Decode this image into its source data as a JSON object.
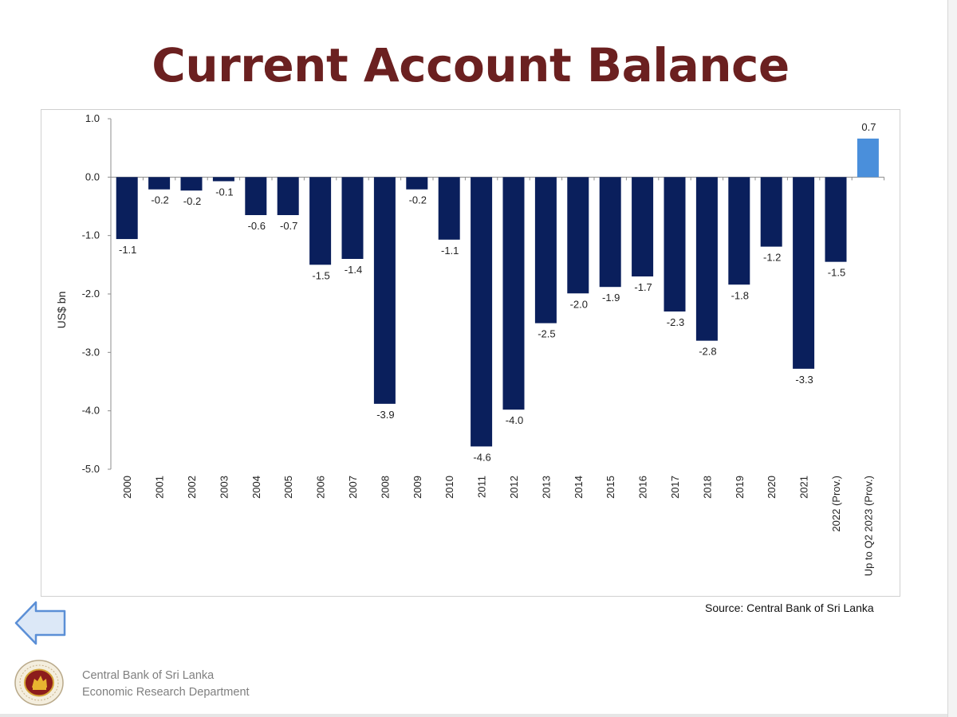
{
  "slide": {
    "title": "Current Account Balance",
    "source": "Source: Central Bank of Sri Lanka",
    "footer": {
      "line1": "Central Bank of Sri Lanka",
      "line2": "Economic Research Department"
    },
    "nav": {
      "back_icon": "arrow-left-icon"
    },
    "logo": {
      "icon": "central-bank-seal-icon"
    }
  },
  "chart_data": {
    "type": "bar",
    "title": "",
    "xlabel": "",
    "ylabel": "US$ bn",
    "ylim": [
      -5.0,
      1.0
    ],
    "yticks": [
      "1.0",
      "0.0",
      "-1.0",
      "-2.0",
      "-3.0",
      "-4.0",
      "-5.0"
    ],
    "ytick_values": [
      1.0,
      0.0,
      -1.0,
      -2.0,
      -3.0,
      -4.0,
      -5.0
    ],
    "grid": false,
    "categories": [
      "2000",
      "2001",
      "2002",
      "2003",
      "2004",
      "2005",
      "2006",
      "2007",
      "2008",
      "2009",
      "2010",
      "2011",
      "2012",
      "2013",
      "2014",
      "2015",
      "2016",
      "2017",
      "2018",
      "2019",
      "2020",
      "2021",
      "2022 (Prov.)",
      "Up to Q2 2023 (Prov.)"
    ],
    "values": [
      -1.06,
      -0.21,
      -0.23,
      -0.07,
      -0.65,
      -0.65,
      -1.5,
      -1.4,
      -3.88,
      -0.21,
      -1.07,
      -4.61,
      -3.98,
      -2.5,
      -1.99,
      -1.88,
      -1.7,
      -2.3,
      -2.8,
      -1.84,
      -1.19,
      -3.28,
      -1.45,
      0.66
    ],
    "labels": [
      "-1.1",
      "-0.2",
      "-0.2",
      "-0.1",
      "-0.6",
      "-0.7",
      "-1.5",
      "-1.4",
      "-3.9",
      "-0.2",
      "-1.1",
      "-4.6",
      "-4.0",
      "-2.5",
      "-2.0",
      "-1.9",
      "-1.7",
      "-2.3",
      "-2.8",
      "-1.8",
      "-1.2",
      "-3.3",
      "-1.5",
      "0.7"
    ],
    "colors": {
      "main": "#0a1f5c",
      "highlight": "#4a8fdb"
    },
    "highlight_index": 23
  }
}
